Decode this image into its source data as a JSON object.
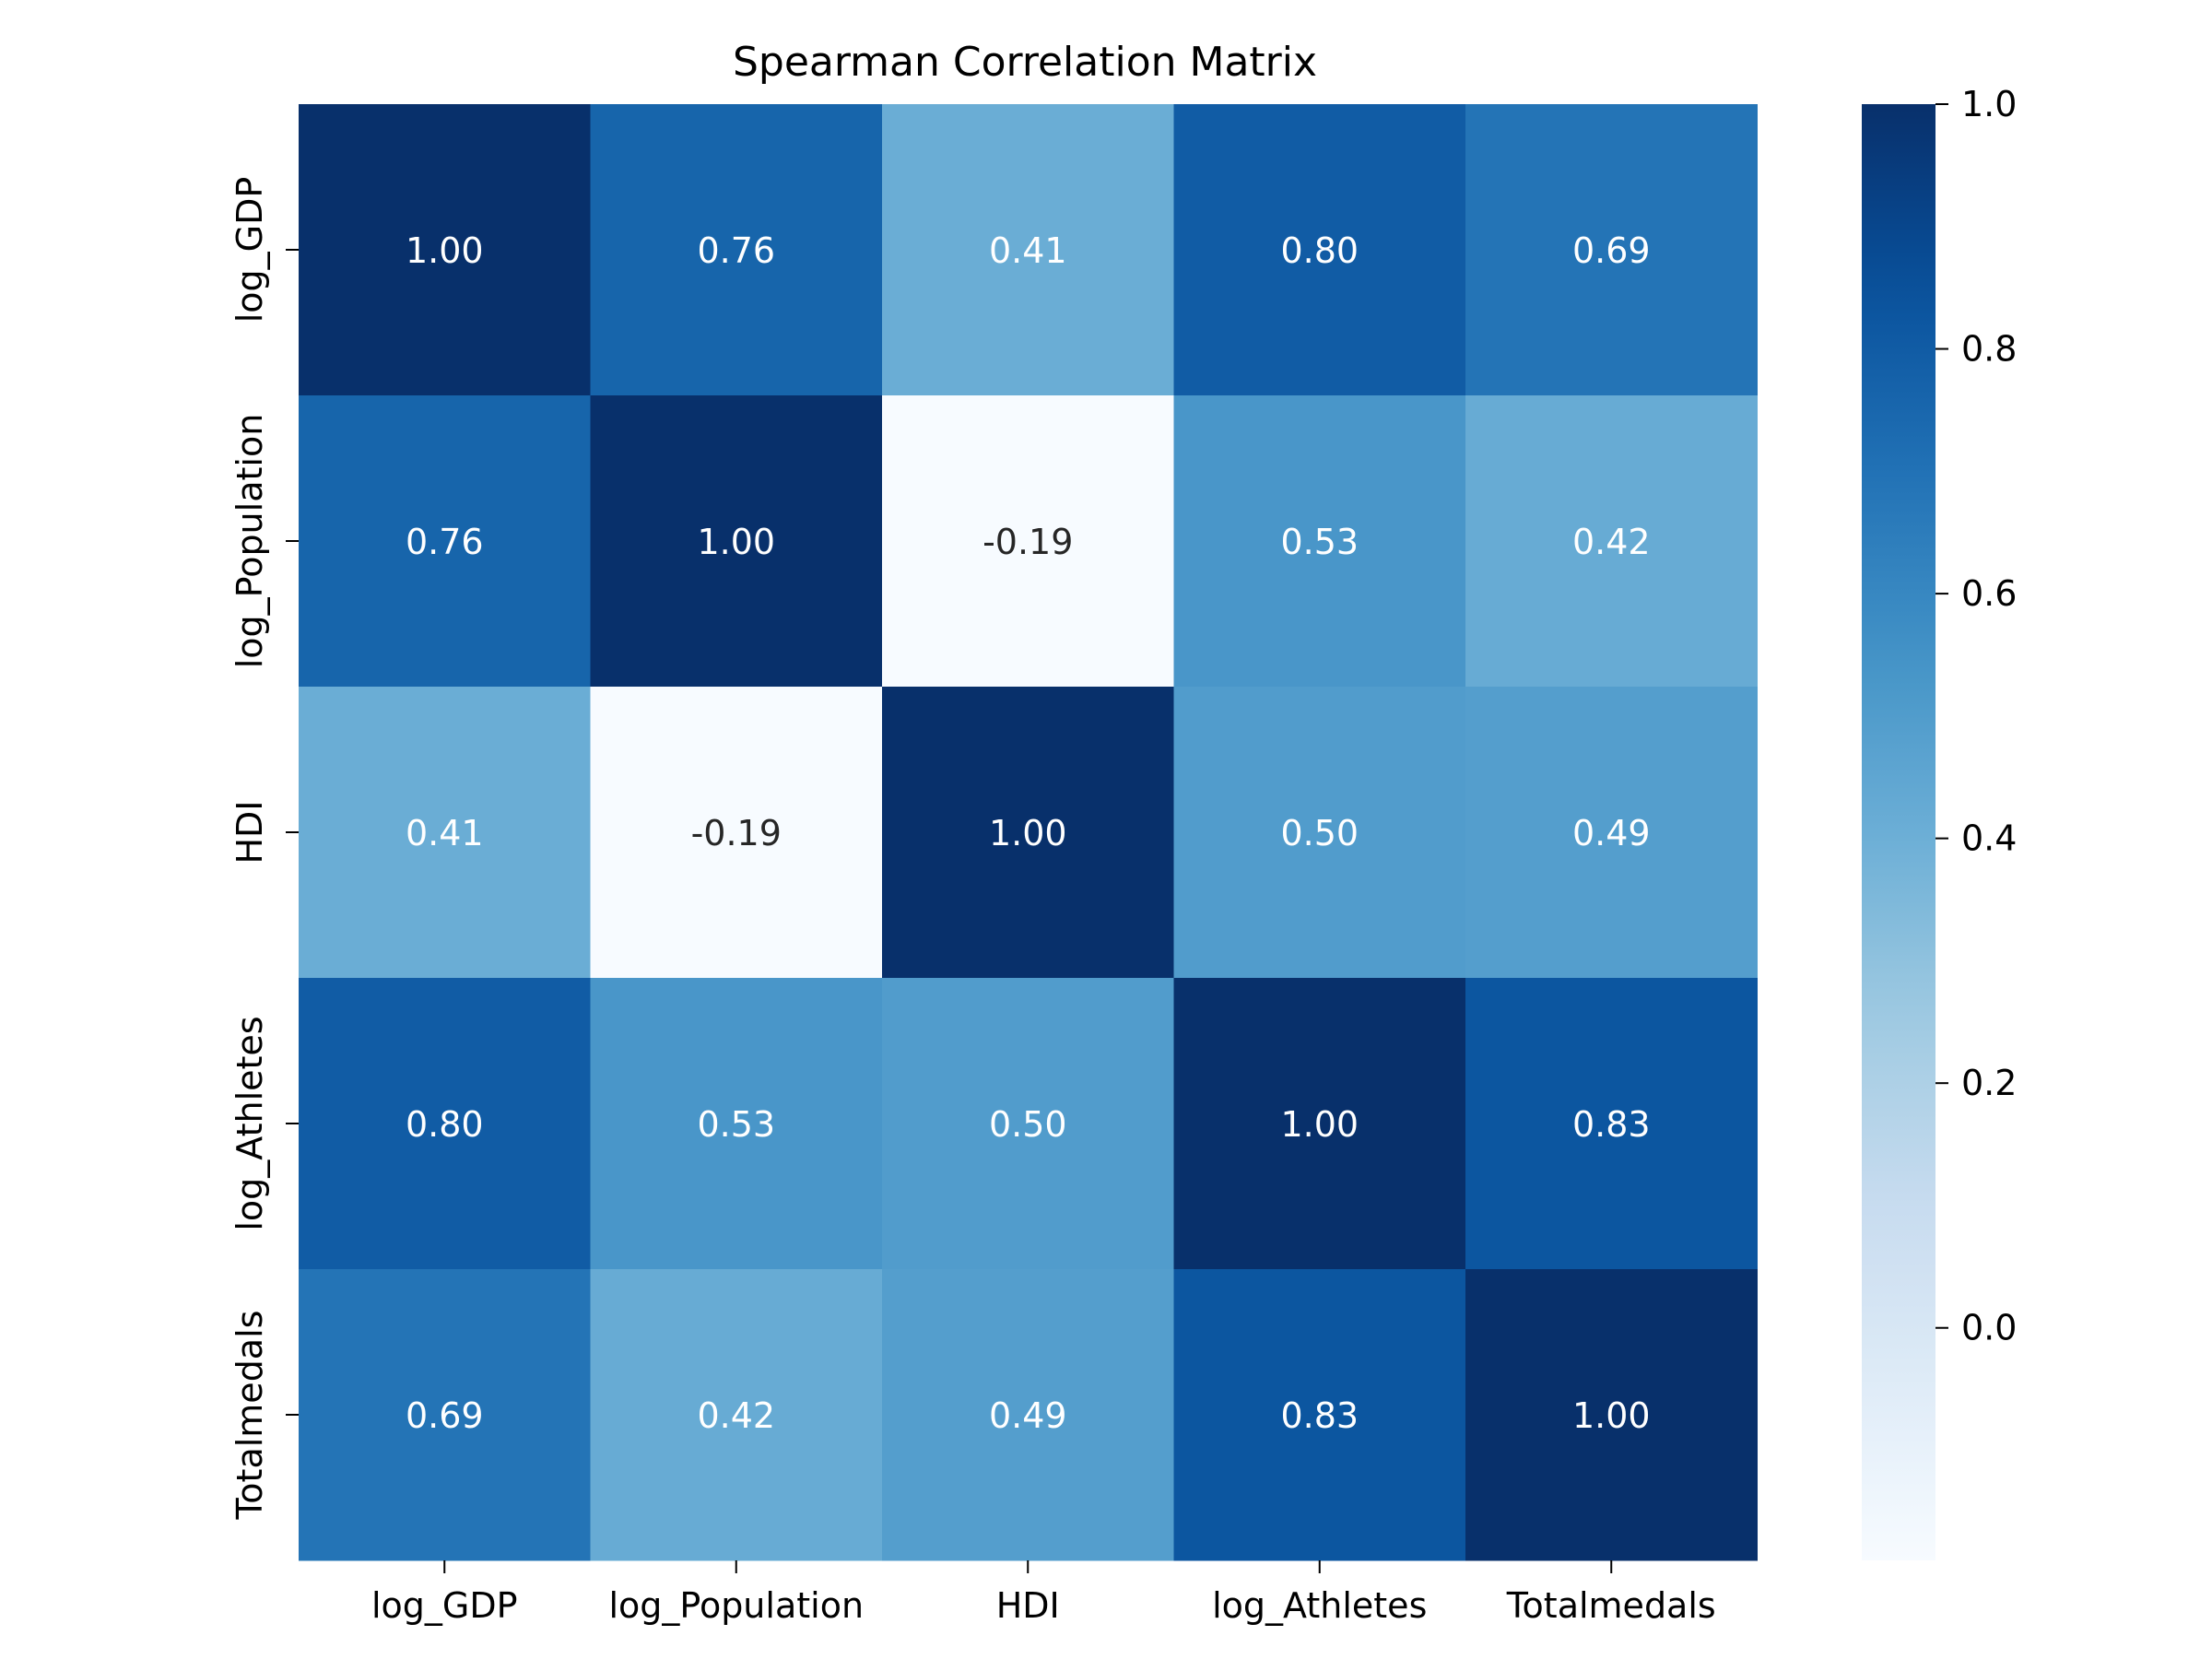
{
  "chart_data": {
    "type": "heatmap",
    "title": "Spearman Correlation Matrix",
    "xlabel": "",
    "ylabel": "",
    "x_categories": [
      "log_GDP",
      "log_Population",
      "HDI",
      "log_Athletes",
      "Totalmedals"
    ],
    "y_categories": [
      "log_GDP",
      "log_Population",
      "HDI",
      "log_Athletes",
      "Totalmedals"
    ],
    "values": [
      [
        1.0,
        0.76,
        0.41,
        0.8,
        0.69
      ],
      [
        0.76,
        1.0,
        -0.19,
        0.53,
        0.42
      ],
      [
        0.41,
        -0.19,
        1.0,
        0.5,
        0.49
      ],
      [
        0.8,
        0.53,
        0.5,
        1.0,
        0.83
      ],
      [
        0.69,
        0.42,
        0.49,
        0.83,
        1.0
      ]
    ],
    "value_format": "2 decimals",
    "colormap": "Blues",
    "colorbar": {
      "range": [
        -0.19,
        1.0
      ],
      "ticks": [
        0.0,
        0.2,
        0.4,
        0.6,
        0.8,
        1.0
      ],
      "tick_labels": [
        "0.0",
        "0.2",
        "0.4",
        "0.6",
        "0.8",
        "1.0"
      ],
      "placement": "right"
    },
    "grid": false
  }
}
